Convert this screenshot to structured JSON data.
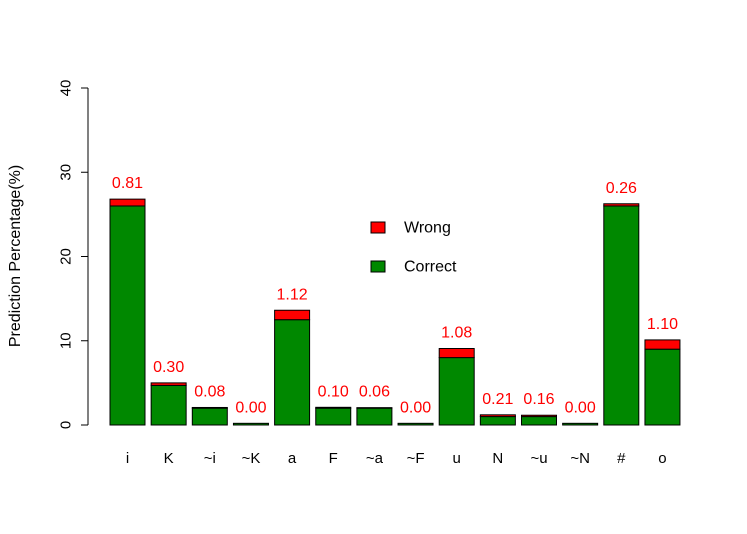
{
  "chart_data": {
    "type": "bar",
    "stacked": true,
    "ylabel": "Prediction Percentage(%)",
    "xlabel": "",
    "ylim": [
      0,
      40
    ],
    "yticks": [
      0,
      10,
      20,
      30,
      40
    ],
    "grid": false,
    "legend_position": "center",
    "categories": [
      "i",
      "K",
      "~i",
      "~K",
      "a",
      "F",
      "~a",
      "~F",
      "u",
      "N",
      "~u",
      "~N",
      "#",
      "o"
    ],
    "series": [
      {
        "name": "Correct",
        "color": "#008800",
        "values": [
          26.0,
          4.7,
          2.0,
          0.2,
          12.5,
          2.0,
          2.0,
          0.2,
          8.0,
          1.0,
          1.0,
          0.2,
          26.0,
          9.0
        ]
      },
      {
        "name": "Wrong",
        "color": "#ff0000",
        "values": [
          0.81,
          0.3,
          0.08,
          0.0,
          1.12,
          0.1,
          0.06,
          0.0,
          1.08,
          0.21,
          0.16,
          0.0,
          0.26,
          1.1
        ]
      }
    ],
    "data_labels": [
      "0.81",
      "0.30",
      "0.08",
      "0.00",
      "1.12",
      "0.10",
      "0.06",
      "0.00",
      "1.08",
      "0.21",
      "0.16",
      "0.00",
      "0.26",
      "1.10"
    ],
    "data_label_color": "#ff0000",
    "legend": [
      {
        "name": "Wrong",
        "color": "#ff0000"
      },
      {
        "name": "Correct",
        "color": "#008800"
      }
    ]
  }
}
